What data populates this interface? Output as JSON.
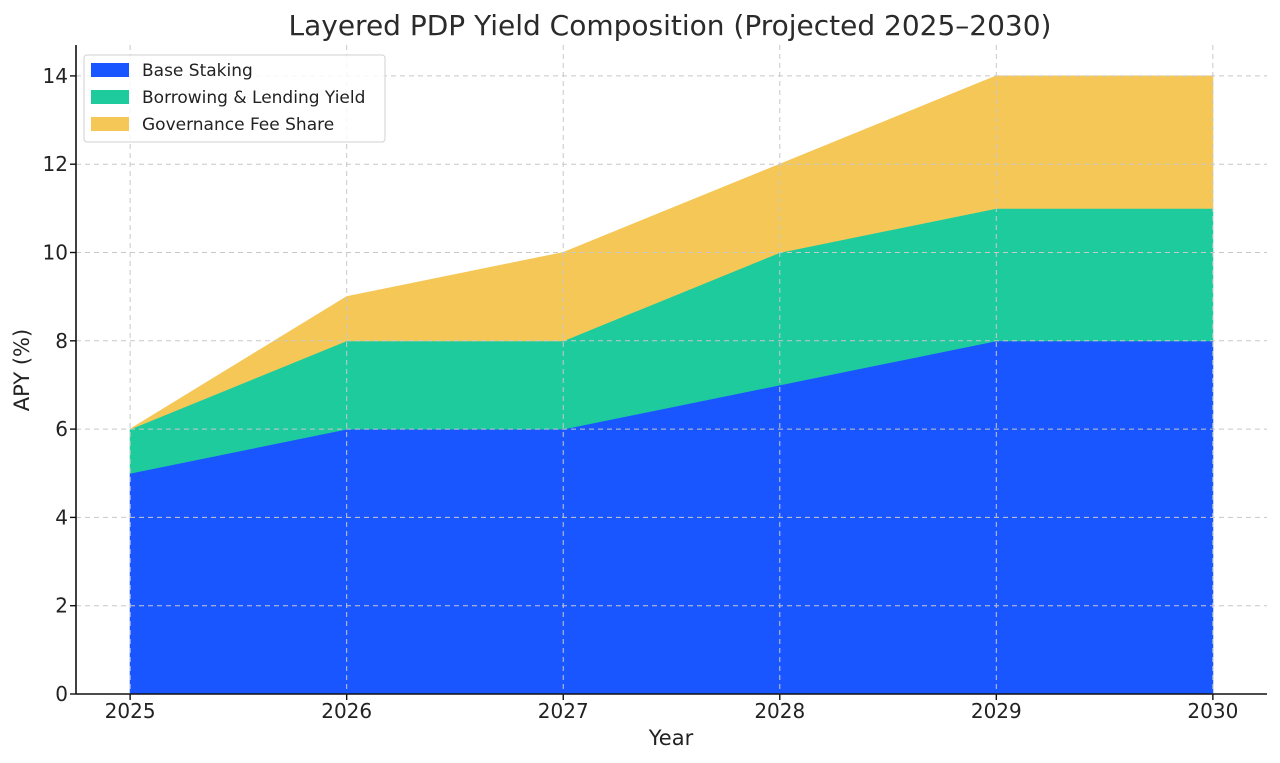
{
  "chart_data": {
    "type": "area",
    "stacked": true,
    "title": "Layered PDP Yield Composition (Projected 2025–2030)",
    "xlabel": "Year",
    "ylabel": "APY (%)",
    "x": [
      2025,
      2026,
      2027,
      2028,
      2029,
      2030
    ],
    "x_tick_labels": [
      "2025",
      "2026",
      "2027",
      "2028",
      "2029",
      "2030"
    ],
    "y_ticks": [
      0,
      2,
      4,
      6,
      8,
      10,
      12,
      14
    ],
    "y_tick_labels": [
      "0",
      "2",
      "4",
      "6",
      "8",
      "10",
      "12",
      "14"
    ],
    "ylim": [
      0,
      14.7
    ],
    "xlim": [
      2024.75,
      2030.25
    ],
    "grid": true,
    "legend_position": "top-left",
    "series": [
      {
        "name": "Base Staking",
        "color": "#1a56ff",
        "values": [
          5,
          6,
          6,
          7,
          8,
          8
        ]
      },
      {
        "name": "Borrowing & Lending Yield",
        "color": "#1ecb9d",
        "values": [
          1,
          2,
          2,
          3,
          3,
          3
        ]
      },
      {
        "name": "Governance Fee Share",
        "color": "#f5c756",
        "values": [
          0,
          1,
          2,
          2,
          3,
          3
        ]
      }
    ]
  }
}
